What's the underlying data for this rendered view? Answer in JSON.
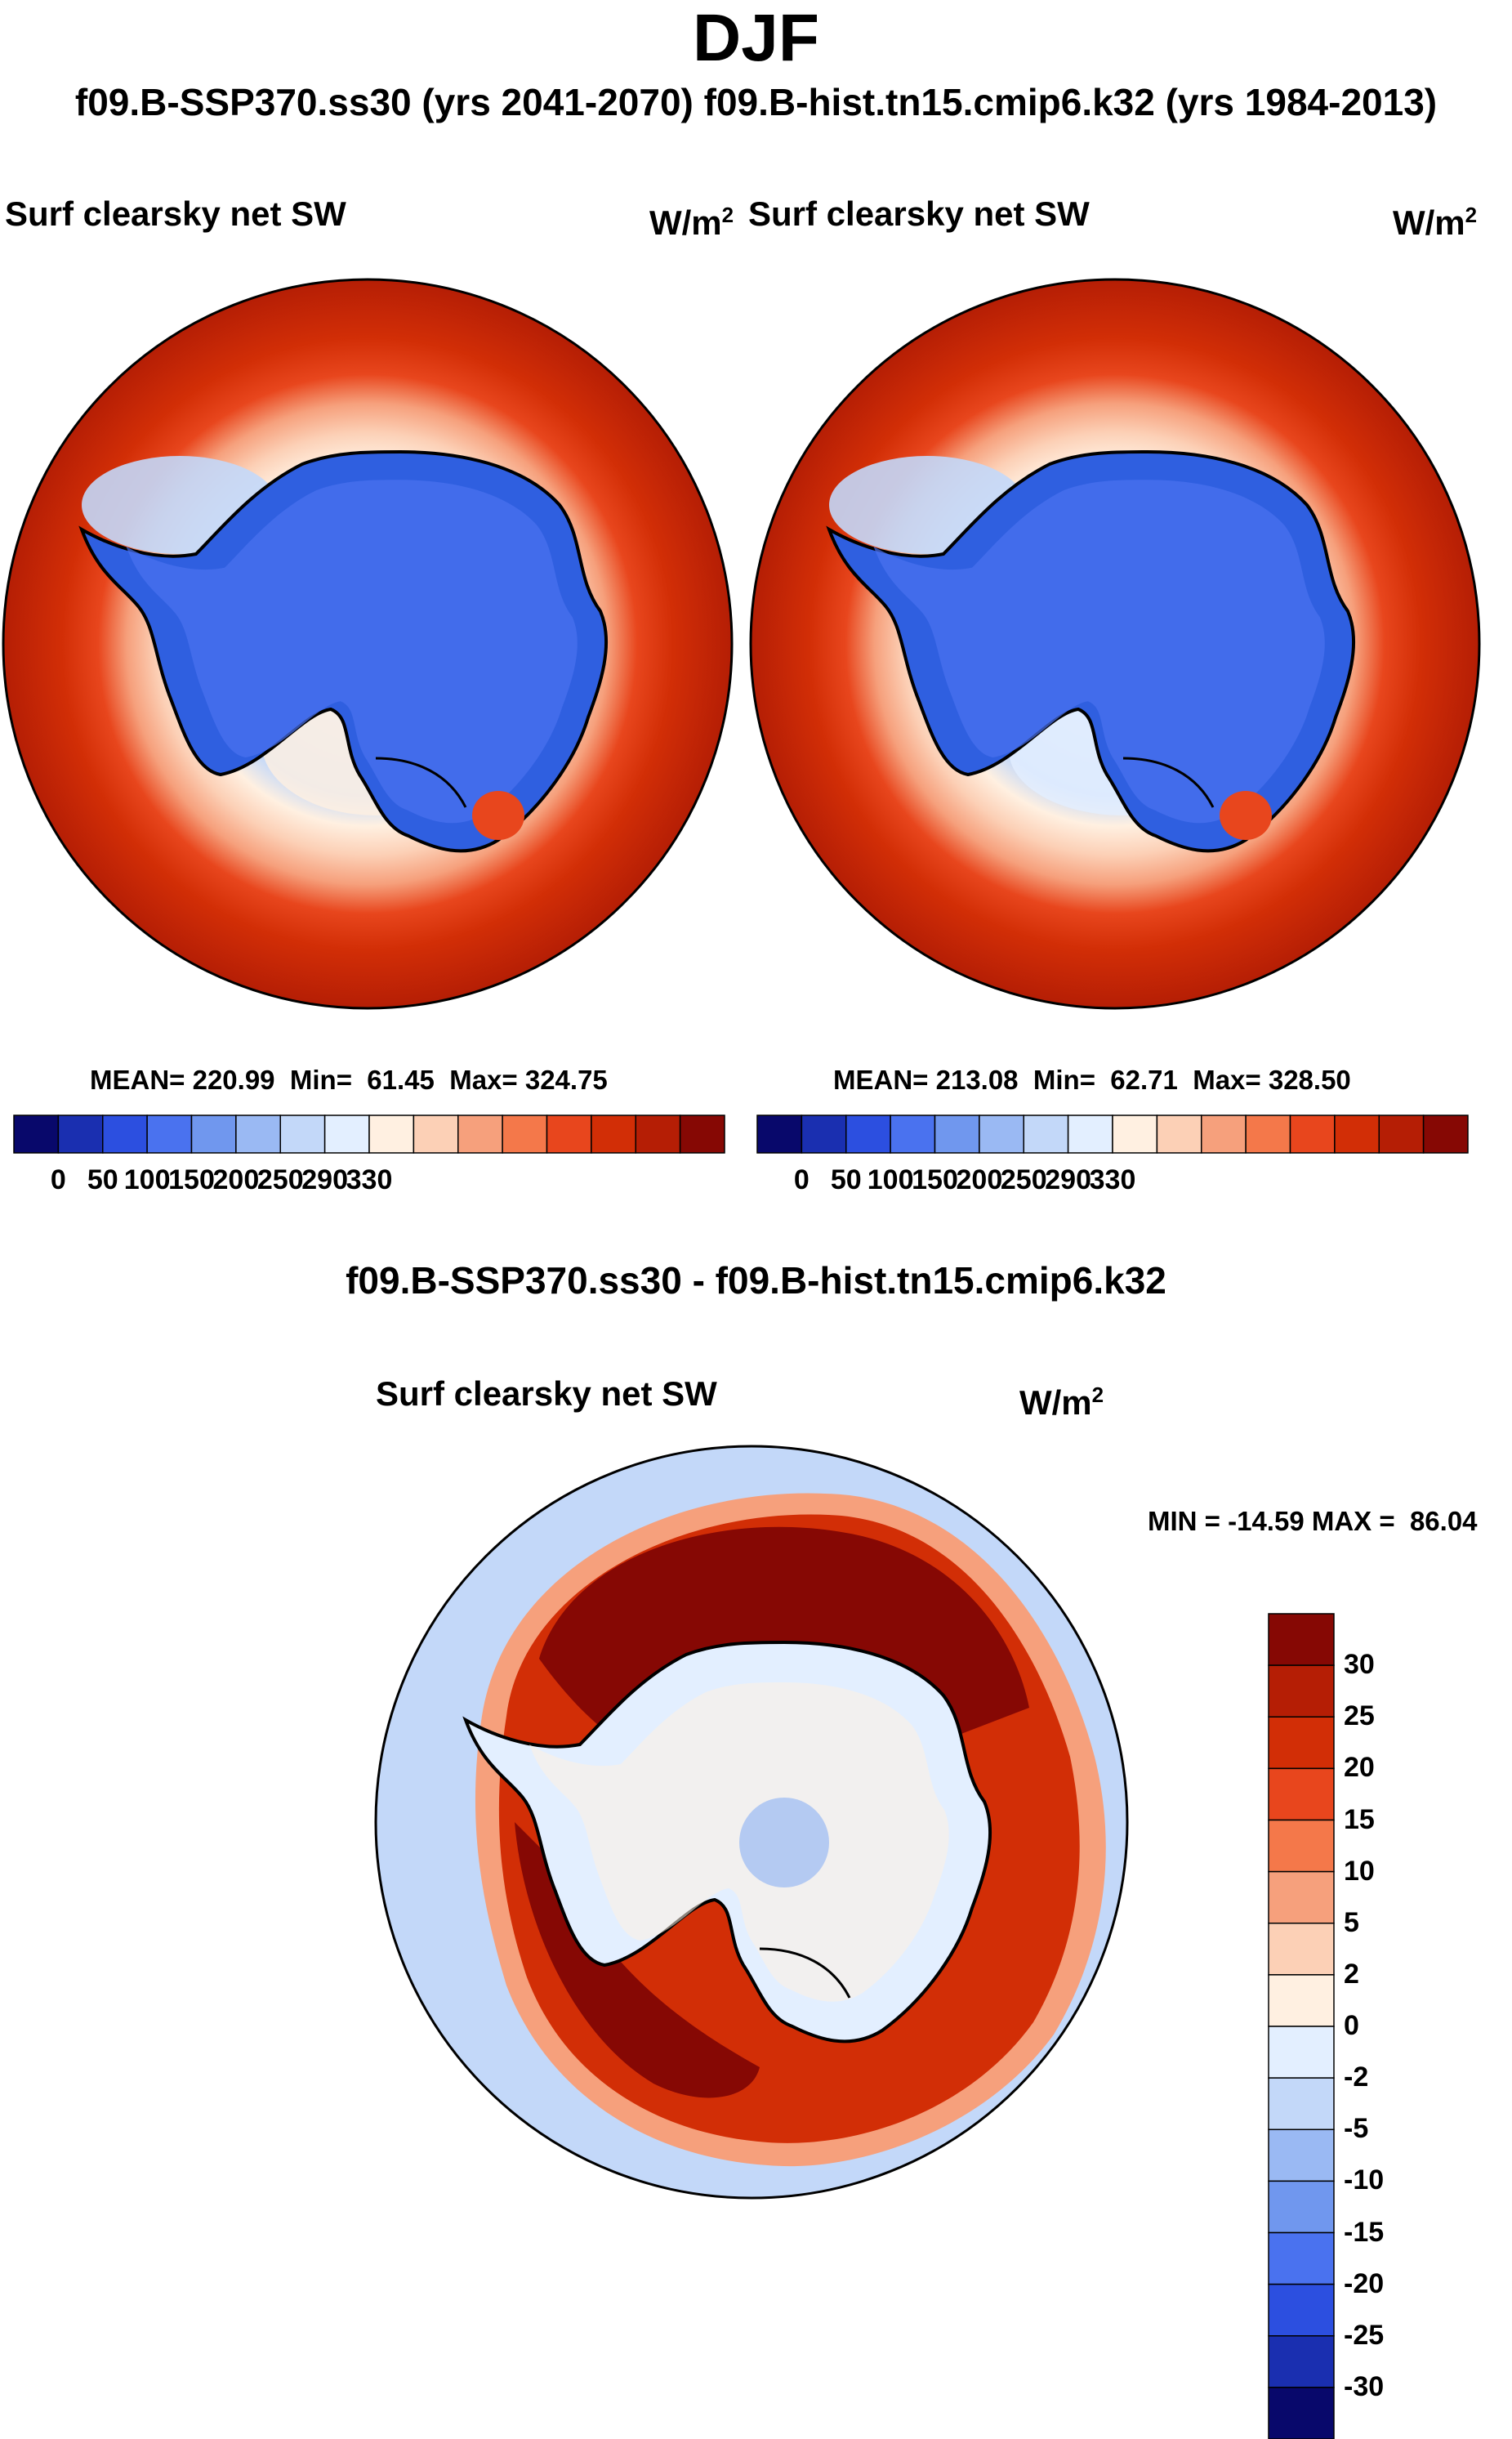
{
  "title": "DJF",
  "subtitle": "f09.B-SSP370.ss30 (yrs 2041-2070)  f09.B-hist.tn15.cmip6.k32 (yrs 1984-2013)",
  "panels": [
    {
      "label": "Surf clearsky net SW",
      "units_base": "W/m",
      "units_exp": "2",
      "stats": "MEAN= 220.99  Min=  61.45  Max= 324.75"
    },
    {
      "label": "Surf clearsky net SW",
      "units_base": "W/m",
      "units_exp": "2",
      "stats": "MEAN= 213.08  Min=  62.71  Max= 328.50"
    }
  ],
  "difference_panel": {
    "title": "f09.B-SSP370.ss30 - f09.B-hist.tn15.cmip6.k32",
    "label": "Surf clearsky net SW",
    "units_base": "W/m",
    "units_exp": "2",
    "stats": "MIN = -14.59 MAX =  86.04"
  },
  "colorbars": {
    "top_labels": [
      "0",
      "50",
      "100",
      "150",
      "200",
      "250",
      "290",
      "330"
    ],
    "top_colors": [
      "#08086b",
      "#1a2fb0",
      "#2c4fe0",
      "#4a72ef",
      "#7097ee",
      "#9ab9f3",
      "#c3d8f9",
      "#e3efff",
      "#fff0e1",
      "#fcd0b6",
      "#f6a07c",
      "#f4784a",
      "#e8461d",
      "#d22e06",
      "#b51e05",
      "#860804"
    ],
    "diff_labels": [
      "30",
      "25",
      "20",
      "15",
      "10",
      "5",
      "2",
      "0",
      "-2",
      "-5",
      "-10",
      "-15",
      "-20",
      "-25",
      "-30"
    ],
    "diff_colors": [
      "#860804",
      "#b51e05",
      "#d22e06",
      "#e8461d",
      "#f4784a",
      "#f6a07c",
      "#fcd0b6",
      "#fff0e1",
      "#e3efff",
      "#c3d8f9",
      "#9ab9f3",
      "#7097ee",
      "#4a72ef",
      "#2c4fe0",
      "#1a2fb0",
      "#08086b"
    ]
  },
  "chart_data": [
    {
      "type": "polar-contour-map",
      "title": "Surf clearsky net SW",
      "units": "W/m2",
      "experiment": "f09.B-SSP370.ss30 (yrs 2041-2070)",
      "mean": 220.99,
      "min": 61.45,
      "max": 324.75,
      "levels": [
        0,
        50,
        100,
        150,
        200,
        250,
        290,
        330
      ]
    },
    {
      "type": "polar-contour-map",
      "title": "Surf clearsky net SW",
      "units": "W/m2",
      "experiment": "f09.B-hist.tn15.cmip6.k32 (yrs 1984-2013)",
      "mean": 213.08,
      "min": 62.71,
      "max": 328.5,
      "levels": [
        0,
        50,
        100,
        150,
        200,
        250,
        290,
        330
      ]
    },
    {
      "type": "polar-contour-map",
      "title": "Surf clearsky net SW",
      "units": "W/m2",
      "experiment": "f09.B-SSP370.ss30 - f09.B-hist.tn15.cmip6.k32",
      "min": -14.59,
      "max": 86.04,
      "levels": [
        -30,
        -25,
        -20,
        -15,
        -10,
        -5,
        -2,
        0,
        2,
        5,
        10,
        15,
        20,
        25,
        30
      ]
    }
  ]
}
